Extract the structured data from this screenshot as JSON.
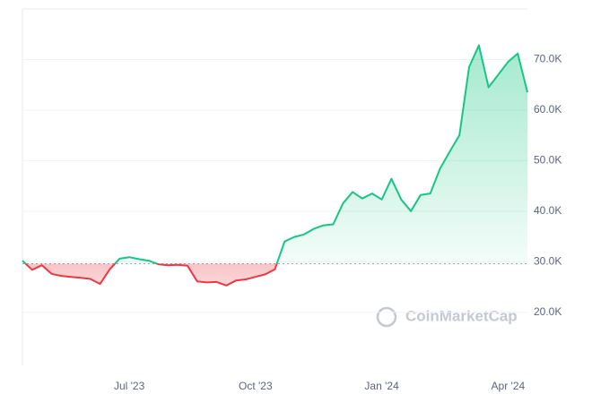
{
  "chart_data": {
    "type": "line",
    "watermark": "CoinMarketCap",
    "categories": [
      null,
      null,
      null,
      null,
      null,
      null,
      null,
      null,
      null,
      null,
      null,
      "Jul '23",
      null,
      null,
      null,
      null,
      null,
      null,
      null,
      null,
      null,
      null,
      null,
      null,
      "Oct '23",
      null,
      null,
      null,
      null,
      null,
      null,
      null,
      null,
      null,
      null,
      null,
      null,
      "Jan '24",
      null,
      null,
      null,
      null,
      null,
      null,
      null,
      null,
      null,
      null,
      null,
      null,
      "Apr '24",
      null,
      null
    ],
    "series": [
      {
        "values": [
          30200,
          28400,
          29300,
          27600,
          27200,
          27000,
          26800,
          26600,
          25600,
          28500,
          30600,
          30900,
          30500,
          30200,
          29500,
          29300,
          29400,
          29200,
          26100,
          25900,
          26000,
          25300,
          26300,
          26500,
          27000,
          27500,
          28500,
          34000,
          34900,
          35400,
          36500,
          37200,
          37400,
          41500,
          43800,
          42500,
          43500,
          42300,
          46400,
          42300,
          40000,
          43200,
          43500,
          48400,
          51800,
          55000,
          68500,
          72800,
          64500,
          67000,
          69500,
          71200,
          63500
        ]
      }
    ],
    "baseline": 29600,
    "up_color": "#16c784",
    "down_color": "#ea3943",
    "ylim": [
      9500,
      80000
    ],
    "yticks": [
      {
        "value": 20000,
        "label": "20.0K"
      },
      {
        "value": 30000,
        "label": "30.0K"
      },
      {
        "value": 40000,
        "label": "40.0K"
      },
      {
        "value": 50000,
        "label": "50.0K"
      },
      {
        "value": 60000,
        "label": "60.0K"
      },
      {
        "value": 70000,
        "label": "70.0K"
      }
    ],
    "grid": true
  }
}
